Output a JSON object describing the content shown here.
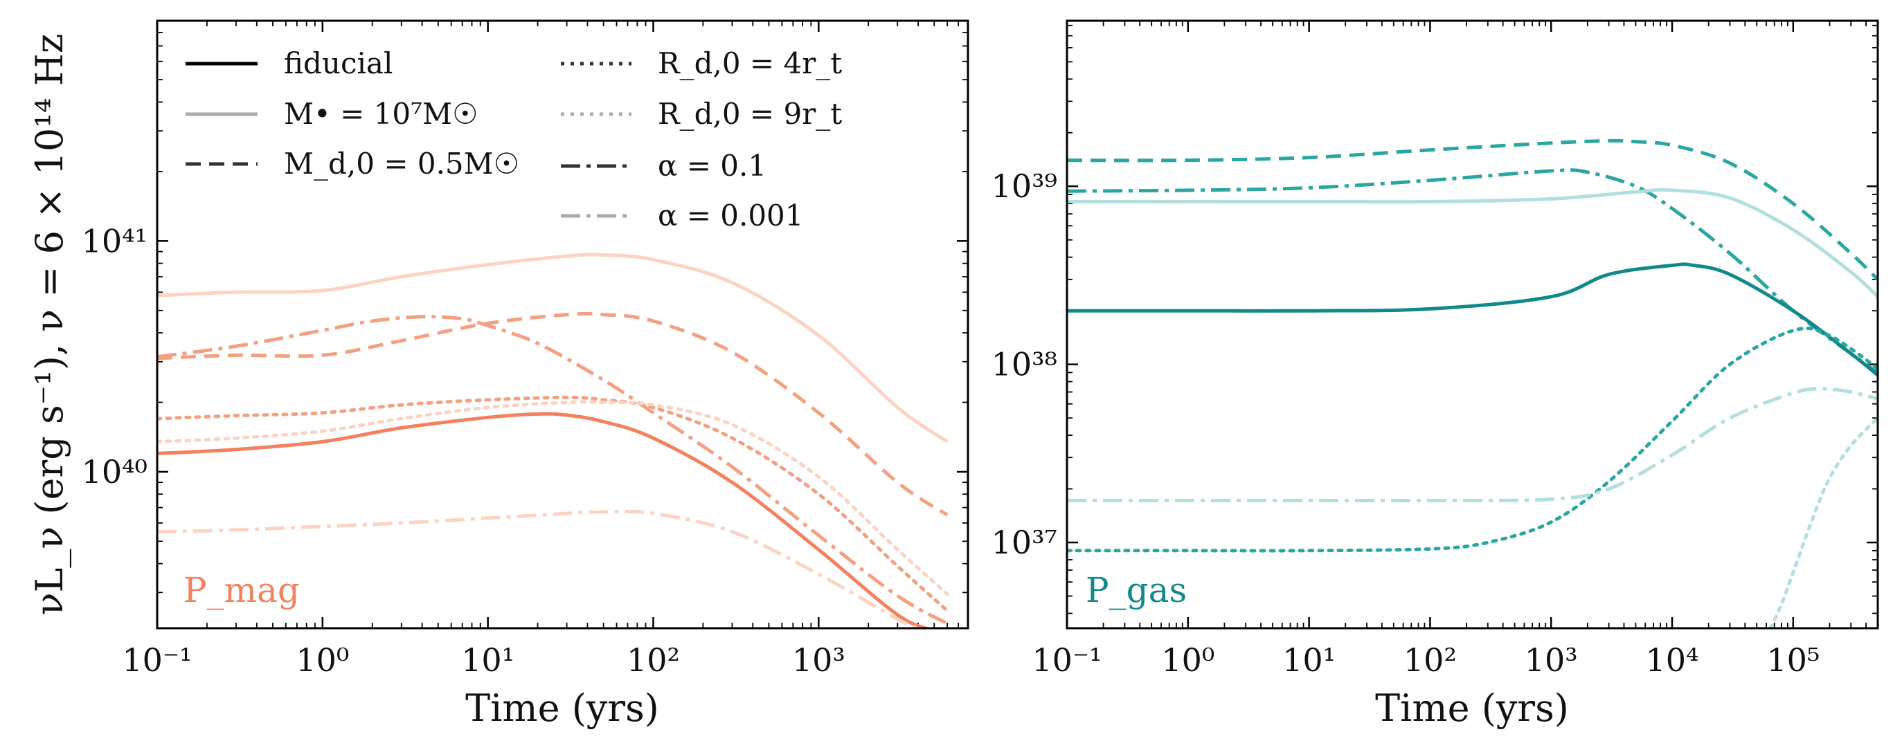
{
  "chart_data": [
    {
      "type": "line",
      "panel": "left",
      "xscale": "log",
      "yscale": "log",
      "xlim": [
        0.1,
        8000
      ],
      "ylim": [
        2.1e+39,
        9e+41
      ],
      "xlabel": "Time (yrs)",
      "ylabel": "νL_ν (erg s⁻¹), ν = 6 × 10¹⁴ Hz",
      "x_ticks": [
        0.1,
        1,
        10,
        100,
        1000
      ],
      "x_tick_labels": [
        "10⁻¹",
        "10⁰",
        "10¹",
        "10²",
        "10³"
      ],
      "y_ticks": [
        1e+40,
        1e+41
      ],
      "y_tick_labels": [
        "10⁴⁰",
        "10⁴¹"
      ],
      "annotation": "P_mag",
      "annotation_color": "#f4805d",
      "legend": {
        "placement": "top-left",
        "columns": 2,
        "entries": [
          {
            "label": "fiducial",
            "style": "solid",
            "color": "#000000"
          },
          {
            "label": "M• = 10⁷M☉",
            "style": "solid",
            "color": "#aaaaaa"
          },
          {
            "label": "M_d,0 = 0.5M☉",
            "style": "dashed",
            "color": "#333333"
          },
          {
            "label": "R_d,0 = 4r_t",
            "style": "dotted",
            "color": "#333333"
          },
          {
            "label": "R_d,0 = 9r_t",
            "style": "dotted",
            "color": "#aaaaaa"
          },
          {
            "label": "α = 0.1",
            "style": "dashdot",
            "color": "#333333"
          },
          {
            "label": "α = 0.001",
            "style": "dashdot",
            "color": "#aaaaaa"
          }
        ]
      },
      "series": [
        {
          "key": "mbh",
          "color": "#fcd3c2",
          "style": "solid",
          "x": [
            0.1,
            0.3,
            1,
            3,
            10,
            30,
            50,
            100,
            300,
            1000,
            3000,
            6000
          ],
          "y": [
            5.8e+40,
            6e+40,
            6.1e+40,
            7e+40,
            7.9e+40,
            8.6e+40,
            8.7e+40,
            8.3e+40,
            6.6e+40,
            3.9e+40,
            1.9e+40,
            1.35e+40
          ]
        },
        {
          "key": "mdisk",
          "color": "#f4a080",
          "style": "dashed",
          "x": [
            0.1,
            0.3,
            1,
            3,
            10,
            30,
            50,
            100,
            300,
            1000,
            3000,
            6000
          ],
          "y": [
            3.1e+40,
            3.2e+40,
            3.2e+40,
            3.7e+40,
            4.4e+40,
            4.8e+40,
            4.8e+40,
            4.5e+40,
            3.3e+40,
            1.8e+40,
            9e+39,
            6.5e+39
          ]
        },
        {
          "key": "alpha01",
          "color": "#f4a080",
          "style": "dashdot",
          "x": [
            0.1,
            0.3,
            1,
            2,
            4,
            7,
            10,
            20,
            50,
            100,
            300,
            1000,
            3000,
            6000
          ],
          "y": [
            3.15e+40,
            3.5e+40,
            4.1e+40,
            4.5e+40,
            4.7e+40,
            4.6e+40,
            4.3e+40,
            3.6e+40,
            2.5e+40,
            1.8e+40,
            1.05e+40,
            5.3e+39,
            2.9e+39,
            2.2e+39
          ]
        },
        {
          "key": "r4",
          "color": "#f4a080",
          "style": "dotted",
          "x": [
            0.1,
            0.3,
            1,
            3,
            10,
            30,
            50,
            100,
            300,
            1000,
            3000,
            6000
          ],
          "y": [
            1.7e+40,
            1.75e+40,
            1.8e+40,
            1.95e+40,
            2.05e+40,
            2.1e+40,
            2.05e+40,
            1.9e+40,
            1.4e+40,
            8e+39,
            3.9e+39,
            2.5e+39
          ]
        },
        {
          "key": "r9",
          "color": "#fcd3c2",
          "style": "dotted",
          "x": [
            0.1,
            0.3,
            1,
            3,
            10,
            30,
            50,
            100,
            300,
            1000,
            3000,
            6000
          ],
          "y": [
            1.35e+40,
            1.4e+40,
            1.5e+40,
            1.7e+40,
            1.9e+40,
            2e+40,
            2e+40,
            1.95e+40,
            1.6e+40,
            9.5e+39,
            4.6e+39,
            2.95e+39
          ]
        },
        {
          "key": "fiducial",
          "color": "#f4805d",
          "style": "solid",
          "x": [
            0.1,
            0.3,
            1,
            3,
            10,
            20,
            30,
            50,
            100,
            300,
            1000,
            3000,
            5000
          ],
          "y": [
            1.2e+40,
            1.25e+40,
            1.35e+40,
            1.55e+40,
            1.72e+40,
            1.78e+40,
            1.76e+40,
            1.65e+40,
            1.4e+40,
            9e+39,
            4.6e+39,
            2.4e+39,
            2.05e+39
          ]
        },
        {
          "key": "alpha0001",
          "color": "#fcd3c2",
          "style": "dashdot",
          "x": [
            0.1,
            0.3,
            1,
            3,
            10,
            30,
            50,
            100,
            300,
            1000,
            3000,
            4000
          ],
          "y": [
            5.5e+39,
            5.6e+39,
            5.8e+39,
            6e+39,
            6.3e+39,
            6.6e+39,
            6.7e+39,
            6.6e+39,
            5.5e+39,
            3.6e+39,
            2.3e+39,
            2.1e+39
          ]
        }
      ]
    },
    {
      "type": "line",
      "panel": "right",
      "xscale": "log",
      "yscale": "log",
      "xlim": [
        0.1,
        500000
      ],
      "ylim": [
        3.3e+36,
        8.5e+39
      ],
      "xlabel": "Time (yrs)",
      "ylabel": "",
      "x_ticks": [
        0.1,
        1,
        10,
        100,
        1000,
        10000,
        100000
      ],
      "x_tick_labels": [
        "10⁻¹",
        "10⁰",
        "10¹",
        "10²",
        "10³",
        "10⁴",
        "10⁵"
      ],
      "y_ticks": [
        1e+37,
        1e+38,
        1e+39
      ],
      "y_tick_labels": [
        "10³⁷",
        "10³⁸",
        "10³⁹"
      ],
      "annotation": "P_gas",
      "annotation_color": "#10898b",
      "series": [
        {
          "key": "mdisk",
          "color": "#2aa6a2",
          "style": "dashed",
          "x": [
            0.1,
            1,
            10,
            100,
            1000,
            3000,
            5000,
            10000,
            30000,
            100000,
            300000,
            500000
          ],
          "y": [
            1.4e+39,
            1.4e+39,
            1.45e+39,
            1.6e+39,
            1.75e+39,
            1.8e+39,
            1.78e+39,
            1.7e+39,
            1.35e+39,
            8e+38,
            4.2e+38,
            3e+38
          ]
        },
        {
          "key": "alpha01",
          "color": "#2aa6a2",
          "style": "dashdot",
          "x": [
            0.1,
            1,
            10,
            100,
            1000,
            2000,
            5000,
            10000,
            30000,
            100000,
            300000,
            500000
          ],
          "y": [
            9.4e+38,
            9.5e+38,
            9.8e+38,
            1.08e+39,
            1.22e+39,
            1.2e+39,
            1e+39,
            7.5e+38,
            4.2e+38,
            2e+38,
            1.15e+38,
            9e+37
          ]
        },
        {
          "key": "mbh",
          "color": "#b2dede",
          "style": "solid",
          "x": [
            0.1,
            1,
            10,
            100,
            1000,
            5000,
            10000,
            30000,
            100000,
            300000,
            500000
          ],
          "y": [
            8.2e+38,
            8.2e+38,
            8.2e+38,
            8.2e+38,
            8.5e+38,
            9.3e+38,
            9.5e+38,
            8.6e+38,
            5.7e+38,
            3.3e+38,
            2.4e+38
          ]
        },
        {
          "key": "fiducial",
          "color": "#10898b",
          "style": "solid",
          "x": [
            0.1,
            1,
            10,
            100,
            1000,
            3000,
            10000,
            15000,
            30000,
            100000,
            300000,
            500000
          ],
          "y": [
            2e+38,
            2e+38,
            2e+38,
            2.05e+38,
            2.4e+38,
            3.2e+38,
            3.6e+38,
            3.6e+38,
            3.2e+38,
            2e+38,
            1.15e+38,
            8.7e+37
          ]
        },
        {
          "key": "r4",
          "color": "#2aa6a2",
          "style": "dotted",
          "x": [
            0.1,
            1,
            10,
            100,
            300,
            1000,
            3000,
            10000,
            30000,
            100000,
            200000,
            500000
          ],
          "y": [
            9e+36,
            9e+36,
            9e+36,
            9.2e+36,
            1e+37,
            1.3e+37,
            2.2e+37,
            4.8e+37,
            1e+38,
            1.55e+38,
            1.45e+38,
            9.5e+37
          ]
        },
        {
          "key": "alpha0001",
          "color": "#b2dede",
          "style": "dashdot",
          "x": [
            0.1,
            1,
            10,
            100,
            1000,
            3000,
            10000,
            30000,
            100000,
            170000,
            300000,
            500000
          ],
          "y": [
            1.72e+37,
            1.72e+37,
            1.72e+37,
            1.72e+37,
            1.75e+37,
            2e+37,
            3.1e+37,
            5e+37,
            6.9e+37,
            7.3e+37,
            7e+37,
            6.4e+37
          ]
        },
        {
          "key": "r9",
          "color": "#b2dede",
          "style": "dotted",
          "x": [
            65000,
            80000,
            100000,
            150000,
            200000,
            300000,
            500000
          ],
          "y": [
            3.3e+36,
            4.5e+36,
            6.8e+36,
            1.45e+37,
            2.3e+37,
            3.5e+37,
            5e+37
          ]
        }
      ]
    }
  ]
}
